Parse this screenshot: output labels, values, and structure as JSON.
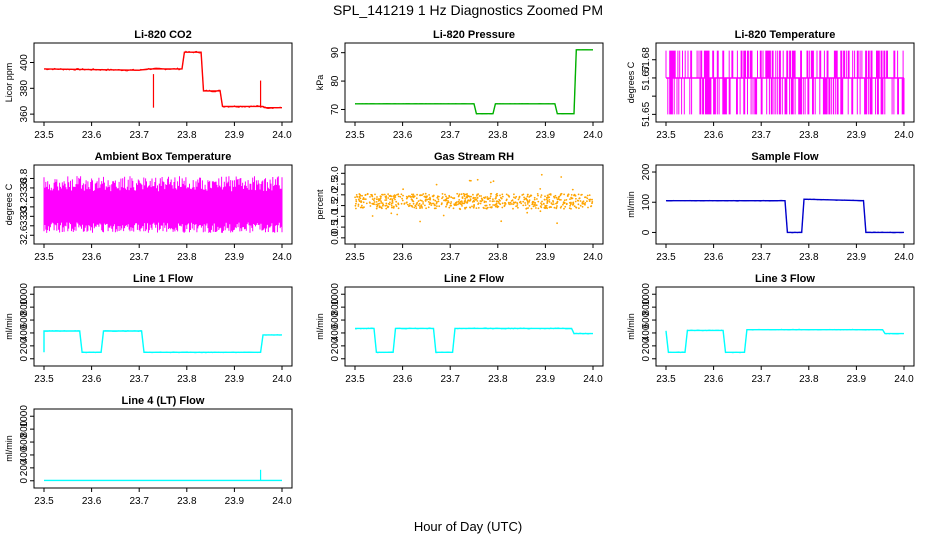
{
  "figure": {
    "title": "SPL_141219  1 Hz Diagnostics Zoomed PM",
    "xlabel": "Hour of Day (UTC)"
  },
  "chart_data": [
    {
      "type": "line",
      "title": "Li-820 CO2",
      "ylabel": "Licor ppm",
      "color": "#ff0000",
      "xlim": [
        23.5,
        24.0
      ],
      "ylim": [
        357,
        412
      ],
      "xticks": [
        "23.5",
        "23.6",
        "23.7",
        "23.8",
        "23.9",
        "24.0"
      ],
      "yticks": [
        360,
        380,
        400
      ],
      "ytick_labels": [
        "360",
        "380",
        "400"
      ],
      "x": [
        23.5,
        23.6,
        23.7,
        23.72,
        23.79,
        23.795,
        23.83,
        23.835,
        23.87,
        23.875,
        23.96,
        23.965,
        24.0
      ],
      "y": [
        395,
        394.5,
        394,
        395,
        395,
        408,
        408,
        378,
        378,
        366,
        366,
        365,
        365
      ],
      "noise": 0.8,
      "spikes": [
        {
          "x": 23.955,
          "y": 386
        },
        {
          "x": 23.73,
          "y": 391
        }
      ]
    },
    {
      "type": "line",
      "title": "Li-820 Pressure",
      "ylabel": "kPa",
      "color": "#00b000",
      "xlim": [
        23.5,
        24.0
      ],
      "ylim": [
        67,
        92
      ],
      "xticks": [
        "23.5",
        "23.6",
        "23.7",
        "23.8",
        "23.9",
        "24.0"
      ],
      "yticks": [
        70,
        80,
        90
      ],
      "ytick_labels": [
        "70",
        "80",
        "90"
      ],
      "x": [
        23.5,
        23.75,
        23.755,
        23.79,
        23.795,
        23.92,
        23.925,
        23.96,
        23.965,
        24.0
      ],
      "y": [
        72,
        72,
        68.5,
        68.5,
        72,
        72,
        68.5,
        68.5,
        91,
        91
      ],
      "noise": 0.1,
      "spikes": []
    },
    {
      "type": "noise-band",
      "title": "Li-820 Temperature",
      "ylabel": "degrees C",
      "color": "#ff00ff",
      "xlim": [
        23.5,
        24.0
      ],
      "ylim": [
        51.648,
        51.687
      ],
      "xticks": [
        "23.5",
        "23.6",
        "23.7",
        "23.8",
        "23.9",
        "24.0"
      ],
      "yticks": [
        51.65,
        51.66,
        51.67,
        51.68
      ],
      "ytick_labels": [
        "51.65",
        "",
        "51.67",
        "51.68"
      ],
      "levels": [
        51.65,
        51.67,
        51.685
      ],
      "base": 51.67
    },
    {
      "type": "noise-band",
      "title": "Ambient Box Temperature",
      "ylabel": "degrees C",
      "color": "#ff00ff",
      "xlim": [
        23.5,
        24.0
      ],
      "ylim": [
        32.5,
        34.0
      ],
      "xticks": [
        "23.5",
        "23.6",
        "23.7",
        "23.8",
        "23.9",
        "24.0"
      ],
      "yticks": [
        32.6,
        32.8,
        33.0,
        33.2,
        33.4,
        33.6,
        33.8
      ],
      "ytick_labels": [
        "32.6",
        "",
        "33.0",
        "33.2",
        "",
        "33.6",
        "33.8"
      ],
      "low": 32.65,
      "high": 33.85,
      "center": 33.2
    },
    {
      "type": "scatter",
      "title": "Gas Stream RH",
      "ylabel": "percent",
      "color": "#ffa500",
      "xlim": [
        23.5,
        24.0
      ],
      "ylim": [
        -0.1,
        3.2
      ],
      "xticks": [
        "23.5",
        "23.6",
        "23.7",
        "23.8",
        "23.9",
        "24.0"
      ],
      "yticks": [
        0.0,
        0.5,
        1.0,
        1.5,
        2.0,
        2.5,
        3.0
      ],
      "ytick_labels": [
        "0.0",
        "0.5",
        "1.0",
        "1.5",
        "2.0",
        "2.5",
        "3.0"
      ],
      "center": 1.7,
      "spread": 0.35
    },
    {
      "type": "line",
      "title": "Sample Flow",
      "ylabel": "ml/min",
      "color": "#0000cc",
      "xlim": [
        23.5,
        24.0
      ],
      "ylim": [
        -25,
        210
      ],
      "xticks": [
        "23.5",
        "23.6",
        "23.7",
        "23.8",
        "23.9",
        "24.0"
      ],
      "yticks": [
        0,
        100,
        200
      ],
      "ytick_labels": [
        "0",
        "100",
        "200"
      ],
      "x": [
        23.5,
        23.75,
        23.755,
        23.785,
        23.79,
        23.915,
        23.92,
        24.0
      ],
      "y": [
        105,
        105,
        0,
        0,
        110,
        105,
        0,
        0
      ],
      "noise": 1.5,
      "spikes": []
    },
    {
      "type": "line",
      "title": "Line 1 Flow",
      "ylabel": "ml/min",
      "color": "#00ffff",
      "xlim": [
        23.5,
        24.0
      ],
      "ylim": [
        -50,
        1050
      ],
      "xticks": [
        "23.5",
        "23.6",
        "23.7",
        "23.8",
        "23.9",
        "24.0"
      ],
      "yticks": [
        0,
        200,
        400,
        600,
        800,
        1000
      ],
      "ytick_labels": [
        "0",
        "200",
        "400",
        "600",
        "800",
        "1000"
      ],
      "x": [
        23.5,
        23.5,
        23.505,
        23.575,
        23.58,
        23.62,
        23.625,
        23.705,
        23.71,
        23.955,
        23.96,
        24.0
      ],
      "y": [
        100,
        430,
        430,
        430,
        100,
        100,
        430,
        430,
        100,
        100,
        370,
        370
      ],
      "noise": 8,
      "spikes": []
    },
    {
      "type": "line",
      "title": "Line 2 Flow",
      "ylabel": "ml/min",
      "color": "#00ffff",
      "xlim": [
        23.5,
        24.0
      ],
      "ylim": [
        -50,
        1050
      ],
      "xticks": [
        "23.5",
        "23.6",
        "23.7",
        "23.8",
        "23.9",
        "24.0"
      ],
      "yticks": [
        0,
        200,
        400,
        600,
        800,
        1000
      ],
      "ytick_labels": [
        "0",
        "200",
        "400",
        "600",
        "800",
        "1000"
      ],
      "x": [
        23.5,
        23.54,
        23.545,
        23.58,
        23.585,
        23.665,
        23.67,
        23.705,
        23.71,
        23.955,
        23.96,
        24.0
      ],
      "y": [
        470,
        470,
        100,
        100,
        470,
        470,
        100,
        100,
        470,
        470,
        390,
        390
      ],
      "noise": 10,
      "spikes": []
    },
    {
      "type": "line",
      "title": "Line 3 Flow",
      "ylabel": "ml/min",
      "color": "#00ffff",
      "xlim": [
        23.5,
        24.0
      ],
      "ylim": [
        -50,
        1050
      ],
      "xticks": [
        "23.5",
        "23.6",
        "23.7",
        "23.8",
        "23.9",
        "24.0"
      ],
      "yticks": [
        0,
        200,
        400,
        600,
        800,
        1000
      ],
      "ytick_labels": [
        "0",
        "200",
        "400",
        "600",
        "800",
        "1000"
      ],
      "x": [
        23.5,
        23.5,
        23.505,
        23.54,
        23.545,
        23.62,
        23.625,
        23.665,
        23.67,
        23.955,
        23.96,
        24.0
      ],
      "y": [
        430,
        430,
        100,
        100,
        440,
        440,
        100,
        100,
        450,
        450,
        390,
        390
      ],
      "noise": 8,
      "spikes": []
    },
    {
      "type": "line",
      "title": "Line 4 (LT) Flow",
      "ylabel": "ml/min",
      "color": "#00ffff",
      "xlim": [
        23.5,
        24.0
      ],
      "ylim": [
        -50,
        1050
      ],
      "xticks": [
        "23.5",
        "23.6",
        "23.7",
        "23.8",
        "23.9",
        "24.0"
      ],
      "yticks": [
        0,
        200,
        400,
        600,
        800,
        1000
      ],
      "ytick_labels": [
        "0",
        "200",
        "400",
        "600",
        "800",
        "1000"
      ],
      "x": [
        23.5,
        24.0
      ],
      "y": [
        5,
        5
      ],
      "noise": 1,
      "spikes": [
        {
          "x": 23.955,
          "y": 170
        }
      ]
    }
  ]
}
